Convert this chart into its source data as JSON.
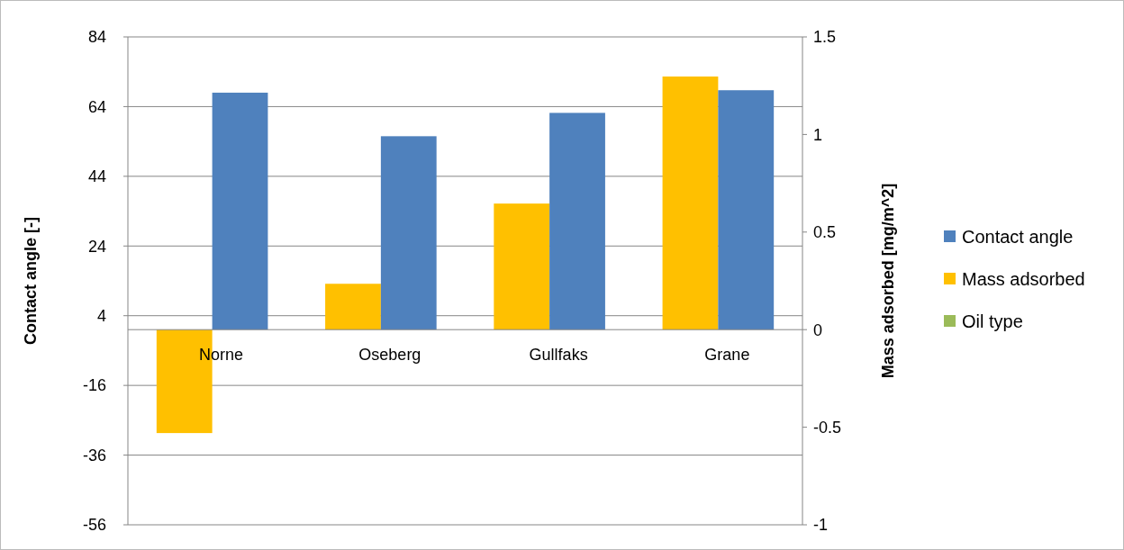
{
  "chart_data": {
    "type": "bar",
    "categories": [
      "Norne",
      "Oseberg",
      "Gullfaks",
      "Grane"
    ],
    "series": [
      {
        "name": "Contact angle",
        "color": "#4f81bd",
        "values": [
          68,
          55.5,
          62.2,
          68.7
        ]
      },
      {
        "name": "Mass adsorbed",
        "color": "#ffc000",
        "values": [
          -0.53,
          0.235,
          0.646,
          1.297
        ],
        "axis": "y2"
      },
      {
        "name": "Oil type",
        "color": "#9bbb59",
        "values": [
          null,
          null,
          null,
          null
        ]
      }
    ],
    "ylabel": "Contact angle [-]",
    "y2label": "Mass adsorbed [mg/m^2]",
    "ylim": [
      -56,
      84
    ],
    "yticks": [
      -56,
      -36,
      -16,
      4,
      24,
      44,
      64,
      84
    ],
    "y2lim": [
      -1,
      1.5
    ],
    "y2ticks": [
      -1,
      -0.5,
      0,
      0.5,
      1,
      1.5
    ],
    "grid": "y",
    "legend": "right"
  }
}
